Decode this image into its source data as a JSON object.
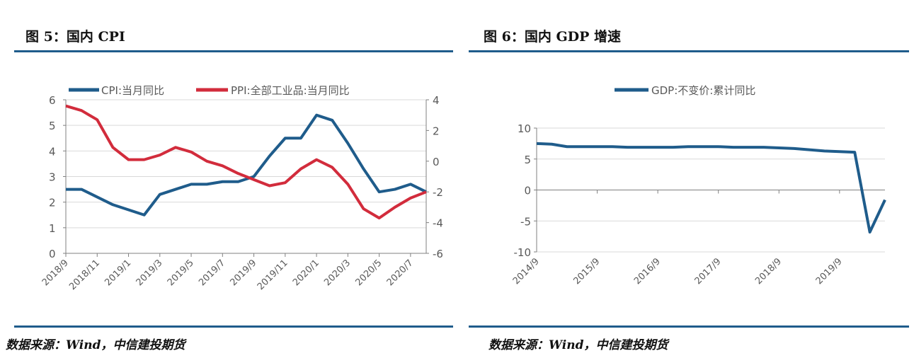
{
  "left_panel": {
    "title": "图 5：国内 CPI",
    "source": "数据来源：Wind，中信建投期货"
  },
  "right_panel": {
    "title": "图 6：国内 GDP 增速",
    "source": "数据来源：Wind，中信建投期货"
  },
  "colors": {
    "rule": "#1f5c8b",
    "cpi": "#1f5c8b",
    "ppi": "#d22c3c",
    "gdp": "#1f5c8b",
    "grid": "#d9d9d9",
    "axis": "#808080"
  },
  "chart_data": [
    {
      "type": "line",
      "title": "",
      "legend_position": "top",
      "grid": true,
      "x": [
        "2018/9",
        "2018/10",
        "2018/11",
        "2018/12",
        "2019/1",
        "2019/2",
        "2019/3",
        "2019/4",
        "2019/5",
        "2019/6",
        "2019/7",
        "2019/8",
        "2019/9",
        "2019/10",
        "2019/11",
        "2019/12",
        "2020/1",
        "2020/2",
        "2020/3",
        "2020/4",
        "2020/5",
        "2020/6",
        "2020/7",
        "2020/8"
      ],
      "x_tick_labels": [
        "2018/9",
        "2018/11",
        "2019/1",
        "2019/3",
        "2019/5",
        "2019/7",
        "2019/9",
        "2019/11",
        "2020/1",
        "2020/3",
        "2020/5",
        "2020/7"
      ],
      "y_left": {
        "lim": [
          0,
          6
        ],
        "ticks": [
          "0",
          "1",
          "2",
          "3",
          "4",
          "5",
          "6"
        ]
      },
      "y_right": {
        "lim": [
          -6,
          4
        ],
        "ticks": [
          "-6",
          "-4",
          "-2",
          "0",
          "2",
          "4"
        ]
      },
      "series": [
        {
          "name": "CPI:当月同比",
          "axis": "left",
          "values": [
            2.5,
            2.5,
            2.2,
            1.9,
            1.7,
            1.5,
            2.3,
            2.5,
            2.7,
            2.7,
            2.8,
            2.8,
            3.0,
            3.8,
            4.5,
            4.5,
            5.4,
            5.2,
            4.3,
            3.3,
            2.4,
            2.5,
            2.7,
            2.4
          ]
        },
        {
          "name": "PPI:全部工业品:当月同比",
          "axis": "right",
          "values": [
            3.6,
            3.3,
            2.7,
            0.9,
            0.1,
            0.1,
            0.4,
            0.9,
            0.6,
            0.0,
            -0.3,
            -0.8,
            -1.2,
            -1.6,
            -1.4,
            -0.5,
            0.1,
            -0.4,
            -1.5,
            -3.1,
            -3.7,
            -3.0,
            -2.4,
            -2.0
          ]
        }
      ]
    },
    {
      "type": "line",
      "title": "",
      "legend_position": "top",
      "grid": true,
      "x": [
        "2014/9",
        "2014/12",
        "2015/3",
        "2015/6",
        "2015/9",
        "2015/12",
        "2016/3",
        "2016/6",
        "2016/9",
        "2016/12",
        "2017/3",
        "2017/6",
        "2017/9",
        "2017/12",
        "2018/3",
        "2018/6",
        "2018/9",
        "2018/12",
        "2019/3",
        "2019/6",
        "2019/9",
        "2019/12",
        "2020/3",
        "2020/6"
      ],
      "x_tick_labels": [
        "2014/9",
        "2015/9",
        "2016/9",
        "2017/9",
        "2018/9",
        "2019/9"
      ],
      "y": {
        "lim": [
          -10,
          10
        ],
        "ticks": [
          "-10",
          "-5",
          "0",
          "5",
          "10"
        ]
      },
      "series": [
        {
          "name": "GDP:不变价:累计同比",
          "values": [
            7.5,
            7.4,
            7.0,
            7.0,
            7.0,
            7.0,
            6.9,
            6.9,
            6.9,
            6.9,
            7.0,
            7.0,
            7.0,
            6.9,
            6.9,
            6.9,
            6.8,
            6.7,
            6.5,
            6.3,
            6.2,
            6.1,
            -6.8,
            -1.6
          ]
        }
      ]
    }
  ]
}
